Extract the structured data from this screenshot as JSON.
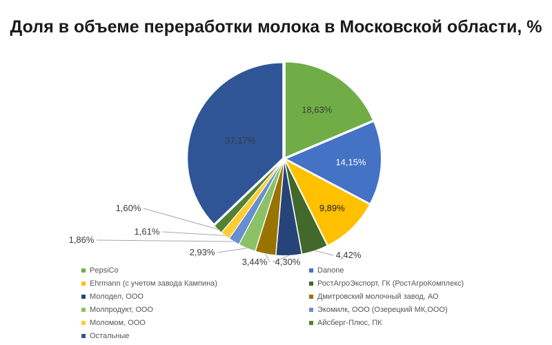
{
  "chart_data": {
    "type": "pie",
    "title": "Доля в объеме переработки молока в Московской области, %",
    "start_angle_deg": 0,
    "direction": "clockwise",
    "slices": [
      {
        "name": "PepsiCo",
        "value": 18.63,
        "label": "18,63%",
        "color": "#70AD47"
      },
      {
        "name": "Danone",
        "value": 14.15,
        "label": "14,15%",
        "color": "#4472C4"
      },
      {
        "name": "Ehrmann (с учетом завода Кампина)",
        "value": 9.89,
        "label": "9,89%",
        "color": "#FFC000"
      },
      {
        "name": "РостАгроЭкспорт, ГК (РостАгроКомплекс)",
        "value": 4.42,
        "label": "4,42%",
        "color": "#43682B"
      },
      {
        "name": "Молодел, ООО",
        "value": 4.3,
        "label": "4,30%",
        "color": "#264478"
      },
      {
        "name": "Дмитровский молочный завод, АО",
        "value": 3.44,
        "label": "3,44%",
        "color": "#997300"
      },
      {
        "name": "Молпродукт, ООО",
        "value": 2.93,
        "label": "2,93%",
        "color": "#8CC168"
      },
      {
        "name": "Экомилк, ООО (Озерецкий МК,ООО)",
        "value": 1.86,
        "label": "1,86%",
        "color": "#698ED0"
      },
      {
        "name": "Моломом, ООО",
        "value": 1.61,
        "label": "1,61%",
        "color": "#FFCD33"
      },
      {
        "name": "Айсберг-Плюс, ПК",
        "value": 1.6,
        "label": "1,60%",
        "color": "#548235"
      },
      {
        "name": "Остальные",
        "value": 37.17,
        "label": "37,17%",
        "color": "#2F5597"
      }
    ],
    "legend_position": "bottom"
  }
}
